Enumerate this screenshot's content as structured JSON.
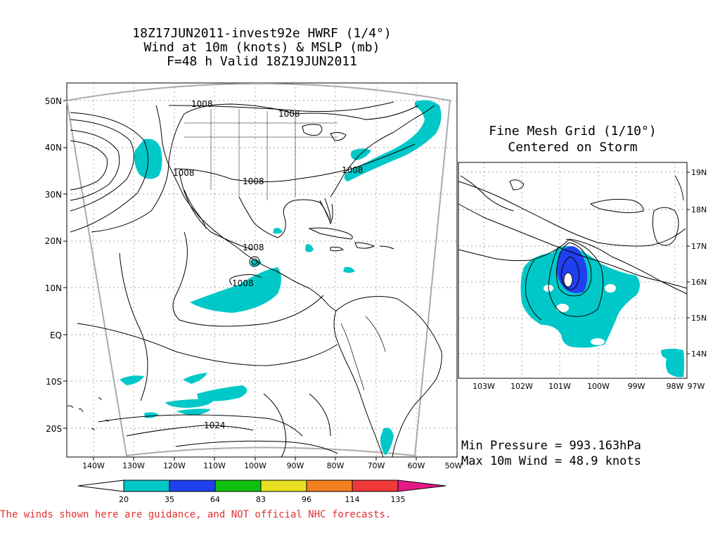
{
  "title": {
    "line1": "18Z17JUN2011-invest92e HWRF (1/4°)",
    "line2": "Wind at 10m (knots) & MSLP (mb)",
    "line3": "F=48 h Valid 18Z19JUN2011"
  },
  "main_map": {
    "lat_labels": [
      "50N",
      "40N",
      "30N",
      "20N",
      "10N",
      "EQ",
      "10S",
      "20S"
    ],
    "lon_labels": [
      "140W",
      "130W",
      "120W",
      "110W",
      "100W",
      "90W",
      "80W",
      "70W",
      "60W",
      "50W"
    ],
    "isobar_labels": [
      "1008",
      "1008",
      "1008",
      "1008",
      "1008",
      "1008",
      "1008",
      "1024"
    ]
  },
  "inset": {
    "title_line1": "Fine Mesh Grid (1/10°)",
    "title_line2": "Centered on Storm",
    "lat_labels": [
      "19N",
      "18N",
      "17N",
      "16N",
      "15N",
      "14N"
    ],
    "lon_labels": [
      "103W",
      "102W",
      "101W",
      "100W",
      "99W",
      "98W",
      "97W"
    ]
  },
  "stats": {
    "min_pressure": "Min Pressure = 993.163hPa",
    "max_wind": "Max 10m Wind = 48.9 knots"
  },
  "colorbar": {
    "labels": [
      "20",
      "35",
      "64",
      "83",
      "96",
      "114",
      "135"
    ],
    "colors": [
      "#00c8c8",
      "#2040f0",
      "#10c010",
      "#e8e020",
      "#f08020",
      "#f03838",
      "#e81888"
    ]
  },
  "disclaimer": "The winds shown here are guidance, and NOT official NHC forecasts."
}
